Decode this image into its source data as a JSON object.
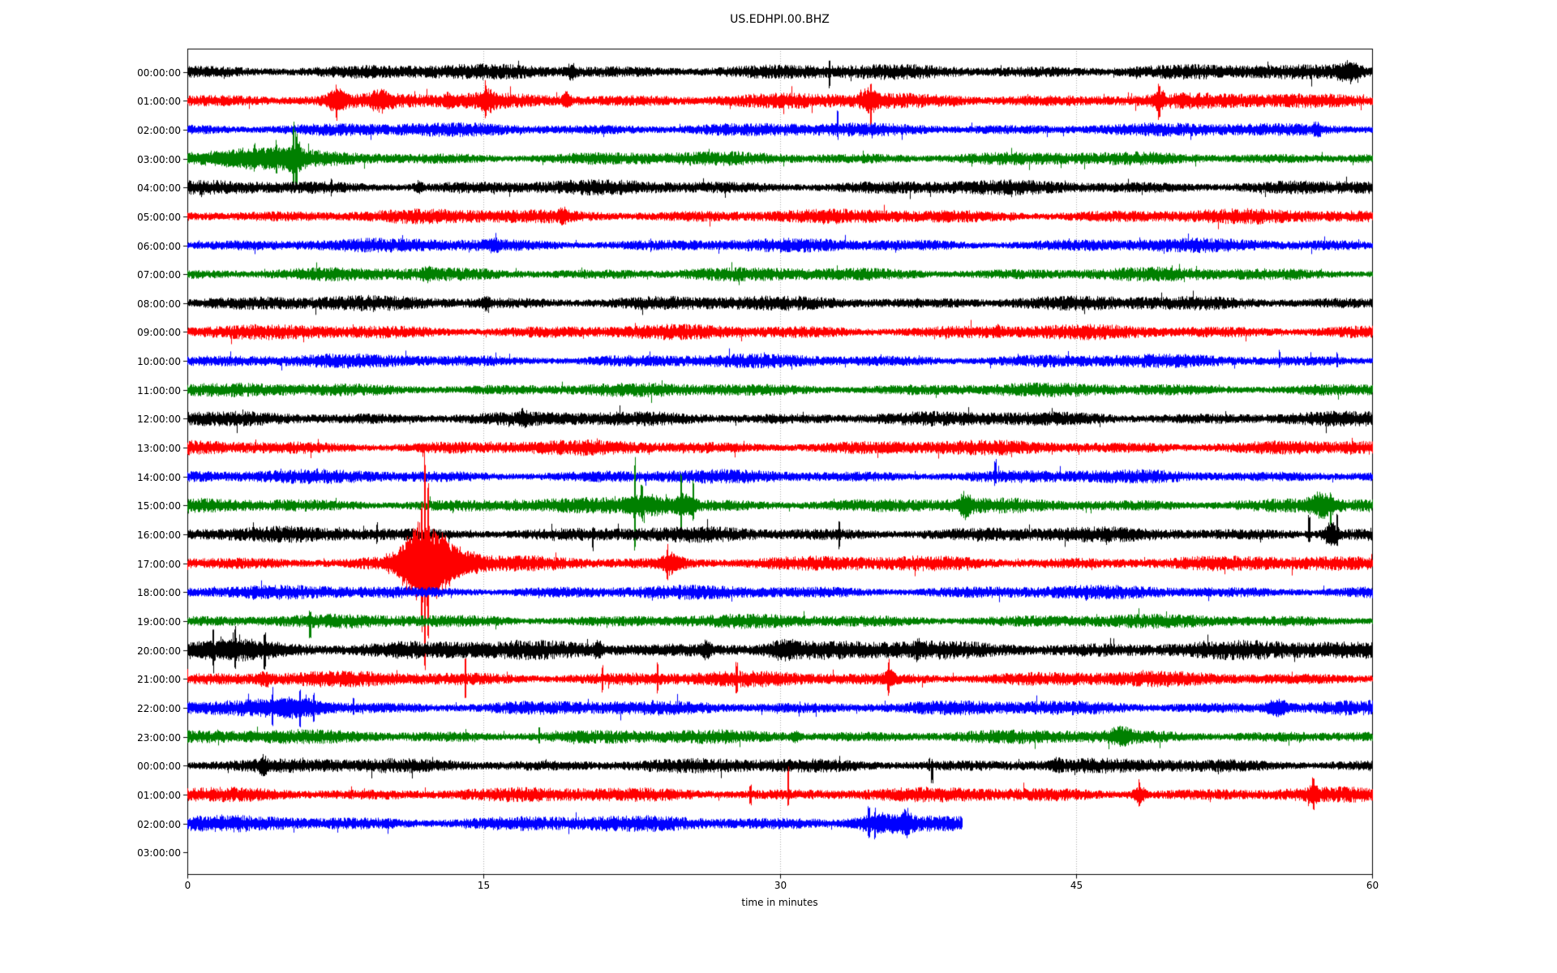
{
  "title": "US.EDHPI.00.BHZ",
  "chart_data": {
    "type": "line",
    "variant": "helicorder-day-plot",
    "station_code": "US.EDHPI.00.BHZ",
    "grid": "vertical-dotted",
    "x_axis": {
      "label": "time in minutes",
      "min": 0,
      "max": 60,
      "ticks": [
        "0",
        "15",
        "30",
        "45",
        "60"
      ],
      "tick_values": [
        0,
        15,
        30,
        45,
        60
      ],
      "gridline_minutes": [
        15,
        30,
        45
      ]
    },
    "y_axis": {
      "labels": [
        "00:00:00",
        "01:00:00",
        "02:00:00",
        "03:00:00",
        "04:00:00",
        "05:00:00",
        "06:00:00",
        "07:00:00",
        "08:00:00",
        "09:00:00",
        "10:00:00",
        "11:00:00",
        "12:00:00",
        "13:00:00",
        "14:00:00",
        "15:00:00",
        "16:00:00",
        "17:00:00",
        "18:00:00",
        "19:00:00",
        "20:00:00",
        "21:00:00",
        "22:00:00",
        "23:00:00",
        "00:00:00",
        "01:00:00",
        "02:00:00",
        "03:00:00"
      ]
    },
    "color_cycle": [
      "#000000",
      "#ff0000",
      "#0000ff",
      "#008000"
    ],
    "traces": [
      {
        "label": "00:00:00",
        "color": "#000000",
        "start": 0,
        "end": 60,
        "amp": 6.2,
        "events": [
          {
            "k": "b",
            "t": 19.4,
            "d": 0.5,
            "a": 5
          },
          {
            "k": "s",
            "t": 32.5,
            "u": 8,
            "dn": 18
          },
          {
            "k": "b",
            "t": 58.8,
            "d": 1.2,
            "a": 7
          }
        ]
      },
      {
        "label": "01:00:00",
        "color": "#ff0000",
        "start": 0,
        "end": 60,
        "amp": 6.4,
        "events": [
          {
            "k": "b",
            "t": 7.55,
            "d": 0.9,
            "a": 8
          },
          {
            "k": "s",
            "t": 7.55,
            "u": 6,
            "dn": 14
          },
          {
            "k": "b",
            "t": 9.8,
            "d": 1.0,
            "a": 6
          },
          {
            "k": "b",
            "t": 13.2,
            "d": 0.3,
            "a": 4
          },
          {
            "k": "b",
            "t": 15.15,
            "d": 0.6,
            "a": 8
          },
          {
            "k": "s",
            "t": 15.1,
            "u": 14,
            "dn": 8
          },
          {
            "k": "b",
            "t": 19.2,
            "d": 0.4,
            "a": 6
          },
          {
            "k": "b",
            "t": 34.5,
            "d": 0.7,
            "a": 9
          },
          {
            "k": "s",
            "t": 34.6,
            "u": 10,
            "dn": 22
          },
          {
            "k": "b",
            "t": 49.2,
            "d": 0.5,
            "a": 7
          },
          {
            "k": "s",
            "t": 49.2,
            "u": 9,
            "dn": 9
          }
        ]
      },
      {
        "label": "02:00:00",
        "color": "#0000ff",
        "start": 0,
        "end": 60,
        "amp": 5.6,
        "events": [
          {
            "k": "s",
            "t": 32.9,
            "u": 17,
            "dn": 6
          },
          {
            "k": "b",
            "t": 57.2,
            "d": 0.4,
            "a": 5
          }
        ]
      },
      {
        "label": "03:00:00",
        "color": "#008000",
        "start": 0,
        "end": 60,
        "amp": 5.6,
        "events": [
          {
            "k": "b",
            "t": 3.6,
            "d": 4.8,
            "a": 7
          },
          {
            "k": "s",
            "t": 3.4,
            "u": 10,
            "dn": 6
          },
          {
            "k": "s",
            "t": 4.5,
            "u": 12,
            "dn": 7
          },
          {
            "k": "s",
            "t": 5.35,
            "u": 27,
            "dn": 16
          },
          {
            "k": "s",
            "t": 5.5,
            "u": 18,
            "dn": 15
          },
          {
            "k": "b",
            "t": 5.4,
            "d": 0.8,
            "a": 8
          }
        ]
      },
      {
        "label": "04:00:00",
        "color": "#000000",
        "start": 0,
        "end": 60,
        "amp": 6.0,
        "events": [
          {
            "k": "s",
            "t": 7.3,
            "u": 8,
            "dn": 5
          },
          {
            "k": "b",
            "t": 11.7,
            "d": 0.4,
            "a": 4
          }
        ]
      },
      {
        "label": "05:00:00",
        "color": "#ff0000",
        "start": 0,
        "end": 60,
        "amp": 6.0,
        "events": [
          {
            "k": "b",
            "t": 19.0,
            "d": 0.5,
            "a": 4
          }
        ]
      },
      {
        "label": "06:00:00",
        "color": "#0000ff",
        "start": 0,
        "end": 60,
        "amp": 5.6,
        "events": [
          {
            "k": "b",
            "t": 15.5,
            "d": 0.8,
            "a": 3
          }
        ]
      },
      {
        "label": "07:00:00",
        "color": "#008000",
        "start": 0,
        "end": 60,
        "amp": 5.6,
        "events": [
          {
            "k": "b",
            "t": 12.2,
            "d": 0.5,
            "a": 3
          }
        ]
      },
      {
        "label": "08:00:00",
        "color": "#000000",
        "start": 0,
        "end": 60,
        "amp": 6.0,
        "events": [
          {
            "k": "b",
            "t": 15.1,
            "d": 0.4,
            "a": 4
          }
        ]
      },
      {
        "label": "09:00:00",
        "color": "#ff0000",
        "start": 0,
        "end": 60,
        "amp": 6.0,
        "events": [
          {
            "k": "b",
            "t": 41.0,
            "d": 0.3,
            "a": 3
          }
        ]
      },
      {
        "label": "10:00:00",
        "color": "#0000ff",
        "start": 0,
        "end": 60,
        "amp": 5.6,
        "events": [
          {
            "k": "s",
            "t": 55.3,
            "u": 9,
            "dn": 5
          },
          {
            "k": "s",
            "t": 58.2,
            "u": 9,
            "dn": 5
          }
        ]
      },
      {
        "label": "11:00:00",
        "color": "#008000",
        "start": 0,
        "end": 60,
        "amp": 5.6,
        "events": []
      },
      {
        "label": "12:00:00",
        "color": "#000000",
        "start": 0,
        "end": 60,
        "amp": 6.0,
        "events": [
          {
            "k": "b",
            "t": 17.0,
            "d": 0.4,
            "a": 4
          }
        ]
      },
      {
        "label": "13:00:00",
        "color": "#ff0000",
        "start": 0,
        "end": 60,
        "amp": 6.0,
        "events": []
      },
      {
        "label": "14:00:00",
        "color": "#0000ff",
        "start": 0,
        "end": 60,
        "amp": 5.6,
        "events": [
          {
            "k": "s",
            "t": 40.9,
            "u": 16,
            "dn": 5
          }
        ]
      },
      {
        "label": "15:00:00",
        "color": "#008000",
        "start": 0,
        "end": 60,
        "amp": 6.0,
        "events": [
          {
            "k": "b",
            "t": 23.3,
            "d": 2.6,
            "a": 7
          },
          {
            "k": "s",
            "t": 22.65,
            "u": 52,
            "dn": 43
          },
          {
            "k": "s",
            "t": 23.0,
            "u": 14,
            "dn": 10
          },
          {
            "k": "b",
            "t": 25.2,
            "d": 1.0,
            "a": 8
          },
          {
            "k": "s",
            "t": 25.0,
            "u": 35,
            "dn": 30
          },
          {
            "k": "s",
            "t": 25.6,
            "u": 28,
            "dn": 12
          },
          {
            "k": "b",
            "t": 39.4,
            "d": 0.6,
            "a": 9
          },
          {
            "k": "b",
            "t": 57.4,
            "d": 1.2,
            "a": 9
          },
          {
            "k": "s",
            "t": 57.9,
            "u": 8,
            "dn": 20
          }
        ]
      },
      {
        "label": "16:00:00",
        "color": "#000000",
        "start": 0,
        "end": 60,
        "amp": 6.2,
        "events": [
          {
            "k": "s",
            "t": 9.6,
            "u": 9,
            "dn": 9
          },
          {
            "k": "s",
            "t": 20.5,
            "u": 6,
            "dn": 16
          },
          {
            "k": "s",
            "t": 33.0,
            "u": 14,
            "dn": 12
          },
          {
            "k": "s",
            "t": 56.8,
            "u": 20,
            "dn": 6
          },
          {
            "k": "b",
            "t": 57.9,
            "d": 0.7,
            "a": 10
          },
          {
            "k": "s",
            "t": 58.2,
            "u": 20,
            "dn": 8
          }
        ]
      },
      {
        "label": "17:00:00",
        "color": "#ff0000",
        "start": 0,
        "end": 60,
        "amp": 6.2,
        "events": [
          {
            "k": "b",
            "t": 11.2,
            "d": 1.6,
            "a": 14
          },
          {
            "k": "b",
            "t": 12.0,
            "d": 1.5,
            "a": 34
          },
          {
            "k": "s",
            "t": 11.85,
            "u": 40,
            "dn": 35
          },
          {
            "k": "s",
            "t": 12.0,
            "u": 107,
            "dn": 83
          },
          {
            "k": "s",
            "t": 12.18,
            "u": 62,
            "dn": 55
          },
          {
            "k": "b",
            "t": 12.9,
            "d": 1.6,
            "a": 16
          },
          {
            "k": "b",
            "t": 13.8,
            "d": 2.0,
            "a": 8
          },
          {
            "k": "b",
            "t": 24.5,
            "d": 1.0,
            "a": 7
          },
          {
            "k": "s",
            "t": 24.3,
            "u": 10,
            "dn": 8
          }
        ]
      },
      {
        "label": "18:00:00",
        "color": "#0000ff",
        "start": 0,
        "end": 60,
        "amp": 5.6,
        "events": []
      },
      {
        "label": "19:00:00",
        "color": "#008000",
        "start": 0,
        "end": 60,
        "amp": 5.6,
        "events": [
          {
            "k": "s",
            "t": 6.2,
            "u": 6,
            "dn": 18
          }
        ]
      },
      {
        "label": "20:00:00",
        "color": "#000000",
        "start": 0,
        "end": 60,
        "amp": 7.8,
        "events": [
          {
            "k": "b",
            "t": 2.2,
            "d": 4.5,
            "a": 6
          },
          {
            "k": "s",
            "t": 1.3,
            "u": 18,
            "dn": 18
          },
          {
            "k": "s",
            "t": 2.4,
            "u": 15,
            "dn": 12
          },
          {
            "k": "s",
            "t": 3.9,
            "u": 16,
            "dn": 14
          },
          {
            "k": "b",
            "t": 20.8,
            "d": 0.5,
            "a": 6
          },
          {
            "k": "b",
            "t": 26.3,
            "d": 0.4,
            "a": 7
          },
          {
            "k": "b",
            "t": 30.2,
            "d": 1.5,
            "a": 5
          },
          {
            "k": "b",
            "t": 37.0,
            "d": 0.4,
            "a": 5
          }
        ]
      },
      {
        "label": "21:00:00",
        "color": "#ff0000",
        "start": 0,
        "end": 60,
        "amp": 6.2,
        "events": [
          {
            "k": "b",
            "t": 3.9,
            "d": 0.5,
            "a": 5
          },
          {
            "k": "s",
            "t": 14.05,
            "u": 22,
            "dn": 22
          },
          {
            "k": "s",
            "t": 21.0,
            "u": 14,
            "dn": 12
          },
          {
            "k": "s",
            "t": 23.8,
            "u": 15,
            "dn": 13
          },
          {
            "k": "s",
            "t": 27.8,
            "u": 13,
            "dn": 11
          },
          {
            "k": "s",
            "t": 35.5,
            "u": 15,
            "dn": 13
          },
          {
            "k": "b",
            "t": 35.5,
            "d": 0.5,
            "a": 6
          }
        ]
      },
      {
        "label": "22:00:00",
        "color": "#0000ff",
        "start": 0,
        "end": 60,
        "amp": 6.0,
        "events": [
          {
            "k": "b",
            "t": 5.5,
            "d": 3.5,
            "a": 6
          },
          {
            "k": "s",
            "t": 4.3,
            "u": 14,
            "dn": 12
          },
          {
            "k": "s",
            "t": 5.7,
            "u": 16,
            "dn": 14
          },
          {
            "k": "s",
            "t": 6.4,
            "u": 13,
            "dn": 11
          },
          {
            "k": "s",
            "t": 8.4,
            "u": 10,
            "dn": 6
          },
          {
            "k": "b",
            "t": 55.2,
            "d": 0.9,
            "a": 7
          }
        ]
      },
      {
        "label": "23:00:00",
        "color": "#008000",
        "start": 0,
        "end": 60,
        "amp": 5.8,
        "events": [
          {
            "k": "s",
            "t": 17.8,
            "u": 12,
            "dn": 6
          },
          {
            "k": "b",
            "t": 30.8,
            "d": 0.4,
            "a": 4
          },
          {
            "k": "b",
            "t": 47.3,
            "d": 0.9,
            "a": 6
          }
        ]
      },
      {
        "label": "00:00:00",
        "color": "#000000",
        "start": 0,
        "end": 60,
        "amp": 6.0,
        "events": [
          {
            "k": "b",
            "t": 3.8,
            "d": 0.4,
            "a": 6
          },
          {
            "k": "s",
            "t": 37.55,
            "u": 8,
            "dn": 4
          },
          {
            "k": "s",
            "t": 37.7,
            "u": 4,
            "dn": 18
          },
          {
            "k": "b",
            "t": 44.0,
            "d": 0.4,
            "a": 4
          }
        ]
      },
      {
        "label": "01:00:00",
        "color": "#ff0000",
        "start": 0,
        "end": 60,
        "amp": 6.0,
        "events": [
          {
            "k": "s",
            "t": 28.5,
            "u": 10,
            "dn": 10
          },
          {
            "k": "s",
            "t": 30.4,
            "u": 32,
            "dn": 12
          },
          {
            "k": "b",
            "t": 48.2,
            "d": 0.6,
            "a": 7
          },
          {
            "k": "s",
            "t": 48.2,
            "u": 10,
            "dn": 8
          },
          {
            "k": "b",
            "t": 57.0,
            "d": 0.4,
            "a": 6
          },
          {
            "k": "s",
            "t": 57.0,
            "u": 12,
            "dn": 6
          }
        ]
      },
      {
        "label": "02:00:00",
        "color": "#0000ff",
        "start": 0,
        "end": 39.2,
        "amp": 6.6,
        "events": [
          {
            "k": "b",
            "t": 35.0,
            "d": 2.6,
            "a": 6
          },
          {
            "k": "s",
            "t": 34.5,
            "u": 14,
            "dn": 12
          },
          {
            "k": "s",
            "t": 34.8,
            "u": 12,
            "dn": 10
          },
          {
            "k": "b",
            "t": 36.4,
            "d": 0.5,
            "a": 8
          }
        ]
      },
      {
        "label": "03:00:00",
        "color": null,
        "start": 0,
        "end": 0,
        "amp": 0,
        "events": []
      }
    ]
  }
}
